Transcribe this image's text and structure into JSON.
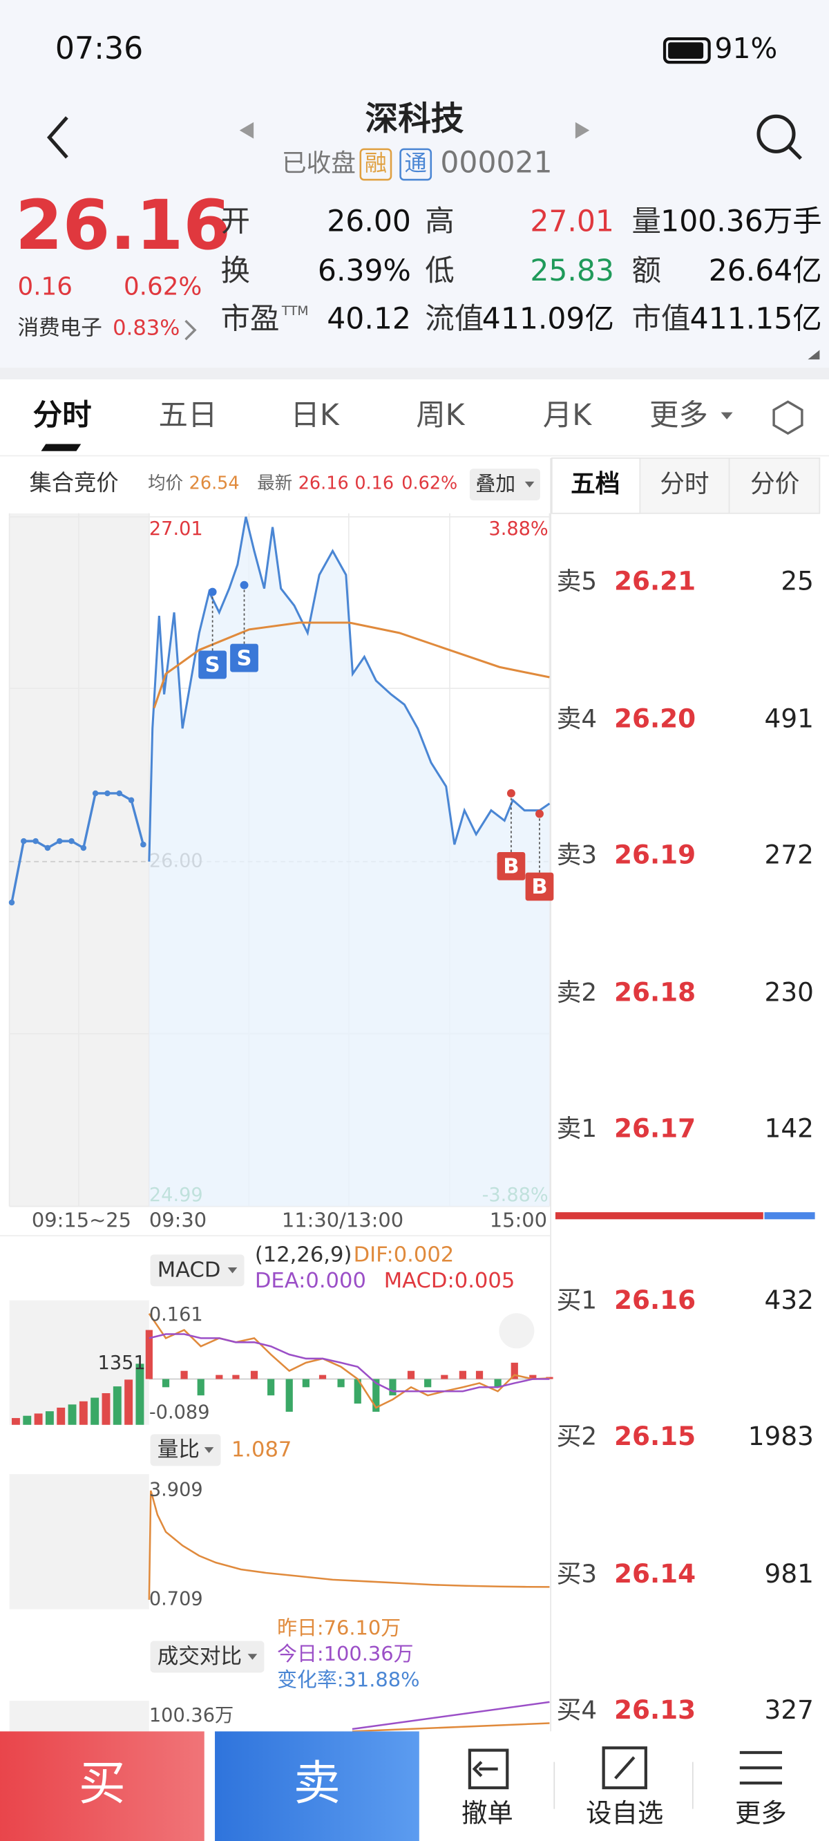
{
  "status_bar": {
    "time": "07:36",
    "battery": "91%"
  },
  "header": {
    "title": "深科技",
    "status": "已收盘",
    "tags": [
      "融",
      "通"
    ],
    "code": "000021"
  },
  "quote": {
    "price": "26.16",
    "change": "0.16",
    "change_pct": "0.62%",
    "sector": "消费电子",
    "sector_change": "0.83%",
    "stats": [
      [
        {
          "label": "开",
          "value": "26.00"
        },
        {
          "label": "高",
          "value": "27.01",
          "color": "#e0383e"
        },
        {
          "label": "量",
          "value": "100.36万手"
        }
      ],
      [
        {
          "label": "换",
          "value": "6.39%"
        },
        {
          "label": "低",
          "value": "25.83",
          "color": "#1f9a5a"
        },
        {
          "label": "额",
          "value": "26.64亿"
        }
      ],
      [
        {
          "label": "市盈",
          "sup": "TTM",
          "value": "40.12"
        },
        {
          "label": "流值",
          "value": "411.09亿"
        },
        {
          "label": "市值",
          "value": "411.15亿"
        }
      ]
    ]
  },
  "tabs": [
    "分时",
    "五日",
    "日K",
    "周K",
    "月K",
    "更多"
  ],
  "active_tab": 0,
  "info_bar": {
    "auction": "集合竞价",
    "avg_label": "均价",
    "avg": "26.54",
    "latest_label": "最新",
    "latest": "26.16",
    "change": "0.16",
    "change_pct": "0.62%",
    "overlay": "叠加"
  },
  "side_tabs": [
    "五档",
    "分时",
    "分价"
  ],
  "order_book": {
    "asks": [
      {
        "label": "卖5",
        "price": "26.21",
        "volume": 25
      },
      {
        "label": "卖4",
        "price": "26.20",
        "volume": 491
      },
      {
        "label": "卖3",
        "price": "26.19",
        "volume": 272
      },
      {
        "label": "卖2",
        "price": "26.18",
        "volume": 230
      },
      {
        "label": "卖1",
        "price": "26.17",
        "volume": 142
      }
    ],
    "bids": [
      {
        "label": "买1",
        "price": "26.16",
        "volume": 432
      },
      {
        "label": "买2",
        "price": "26.15",
        "volume": 1983
      },
      {
        "label": "买3",
        "price": "26.14",
        "volume": 981
      },
      {
        "label": "买4",
        "price": "26.13",
        "volume": 327
      }
    ]
  },
  "intraday": {
    "ylim": [
      24.99,
      27.01
    ],
    "yticks": [
      {
        "value": 26,
        "label": "26.00"
      }
    ],
    "pct_labels": [
      "3.88%",
      "-3.88%"
    ],
    "time_labels": [
      "09:15~25",
      "09:30",
      "11:30/13:00",
      "15:00"
    ],
    "auction_price": [
      25.88,
      26.06,
      26.06,
      26.04,
      26.06,
      26.06,
      26.04,
      26.2,
      26.2,
      26.2,
      26.18,
      26.05
    ],
    "minutes": [
      0,
      2,
      6,
      9,
      15,
      20,
      25,
      30,
      36,
      42,
      48,
      53,
      58,
      63,
      69,
      74,
      79,
      87,
      95,
      102,
      110,
      118,
      122,
      129,
      136,
      145,
      153,
      161,
      169,
      178,
      183,
      189,
      196,
      205,
      213,
      218,
      225,
      234,
      240
    ],
    "price": [
      26.0,
      26.39,
      26.72,
      26.49,
      26.73,
      26.39,
      26.53,
      26.67,
      26.79,
      26.73,
      26.8,
      26.87,
      27.01,
      26.91,
      26.8,
      26.98,
      26.8,
      26.75,
      26.67,
      26.84,
      26.91,
      26.84,
      26.55,
      26.6,
      26.53,
      26.49,
      26.46,
      26.39,
      26.29,
      26.22,
      26.05,
      26.15,
      26.08,
      26.15,
      26.12,
      26.18,
      26.15,
      26.15,
      26.17
    ],
    "avg_minutes": [
      3,
      10,
      30,
      60,
      90,
      120,
      150,
      180,
      210,
      240
    ],
    "avg": [
      26.45,
      26.55,
      26.62,
      26.68,
      26.7,
      26.7,
      26.67,
      26.62,
      26.57,
      26.54
    ],
    "markers": [
      {
        "label": "S",
        "minute": 38,
        "price": 26.79
      },
      {
        "label": "S",
        "minute": 57,
        "price": 26.81
      },
      {
        "label": "B",
        "minute": 217,
        "price": 26.2
      },
      {
        "label": "B",
        "minute": 234,
        "price": 26.14
      }
    ]
  },
  "macd": {
    "button": "MACD",
    "params": "(12,26,9)",
    "dif_label": "DIF:0.002",
    "dea_label": "DEA:0.000",
    "macd_label": "MACD:0.005",
    "ylim": [
      -0.089,
      0.161
    ],
    "auction_volume_max": 1351,
    "auction_volume": [
      150,
      200,
      250,
      300,
      380,
      450,
      520,
      600,
      700,
      850,
      1000,
      1351
    ],
    "minutes": [
      0,
      10,
      21,
      31,
      42,
      52,
      63,
      73,
      84,
      94,
      104,
      115,
      125,
      136,
      146,
      157,
      167,
      177,
      188,
      198,
      209,
      219,
      230,
      240
    ],
    "dif": [
      0.16,
      0.1,
      0.12,
      0.08,
      0.1,
      0.09,
      0.1,
      0.06,
      0.02,
      0.04,
      0.05,
      0.03,
      0.0,
      -0.07,
      -0.05,
      -0.02,
      -0.04,
      -0.03,
      -0.02,
      -0.01,
      -0.03,
      0.01,
      0.0,
      0.002
    ],
    "dea": [
      0.1,
      0.11,
      0.11,
      0.1,
      0.1,
      0.09,
      0.09,
      0.08,
      0.06,
      0.05,
      0.05,
      0.04,
      0.03,
      -0.01,
      -0.03,
      -0.03,
      -0.03,
      -0.03,
      -0.03,
      -0.02,
      -0.02,
      -0.01,
      0.0,
      0.0
    ],
    "hist": [
      0.12,
      -0.02,
      0.02,
      -0.04,
      0.01,
      0.01,
      0.02,
      -0.04,
      -0.08,
      -0.02,
      0.01,
      -0.02,
      -0.06,
      -0.08,
      -0.04,
      0.02,
      -0.02,
      0.01,
      0.02,
      0.02,
      -0.02,
      0.04,
      0.01,
      0.005
    ]
  },
  "volume_ratio": {
    "button": "量比",
    "value": "1.087",
    "ylim": [
      0.709,
      3.909
    ],
    "minutes": [
      0,
      1,
      5,
      10,
      20,
      30,
      40,
      55,
      70,
      90,
      110,
      130,
      150,
      170,
      190,
      210,
      225,
      240
    ],
    "values": [
      0.709,
      3.909,
      3.2,
      2.7,
      2.3,
      2.0,
      1.8,
      1.6,
      1.5,
      1.4,
      1.3,
      1.25,
      1.2,
      1.15,
      1.12,
      1.1,
      1.09,
      1.087
    ]
  },
  "compare": {
    "button": "成交对比",
    "yesterday": "昨日:76.10万",
    "today": "今日:100.36万",
    "change": "变化率:31.88%",
    "axis_label": "100.36万"
  },
  "actions": {
    "buy": "买",
    "sell": "卖",
    "cancel": "撤单",
    "watch": "设自选",
    "more": "更多"
  }
}
